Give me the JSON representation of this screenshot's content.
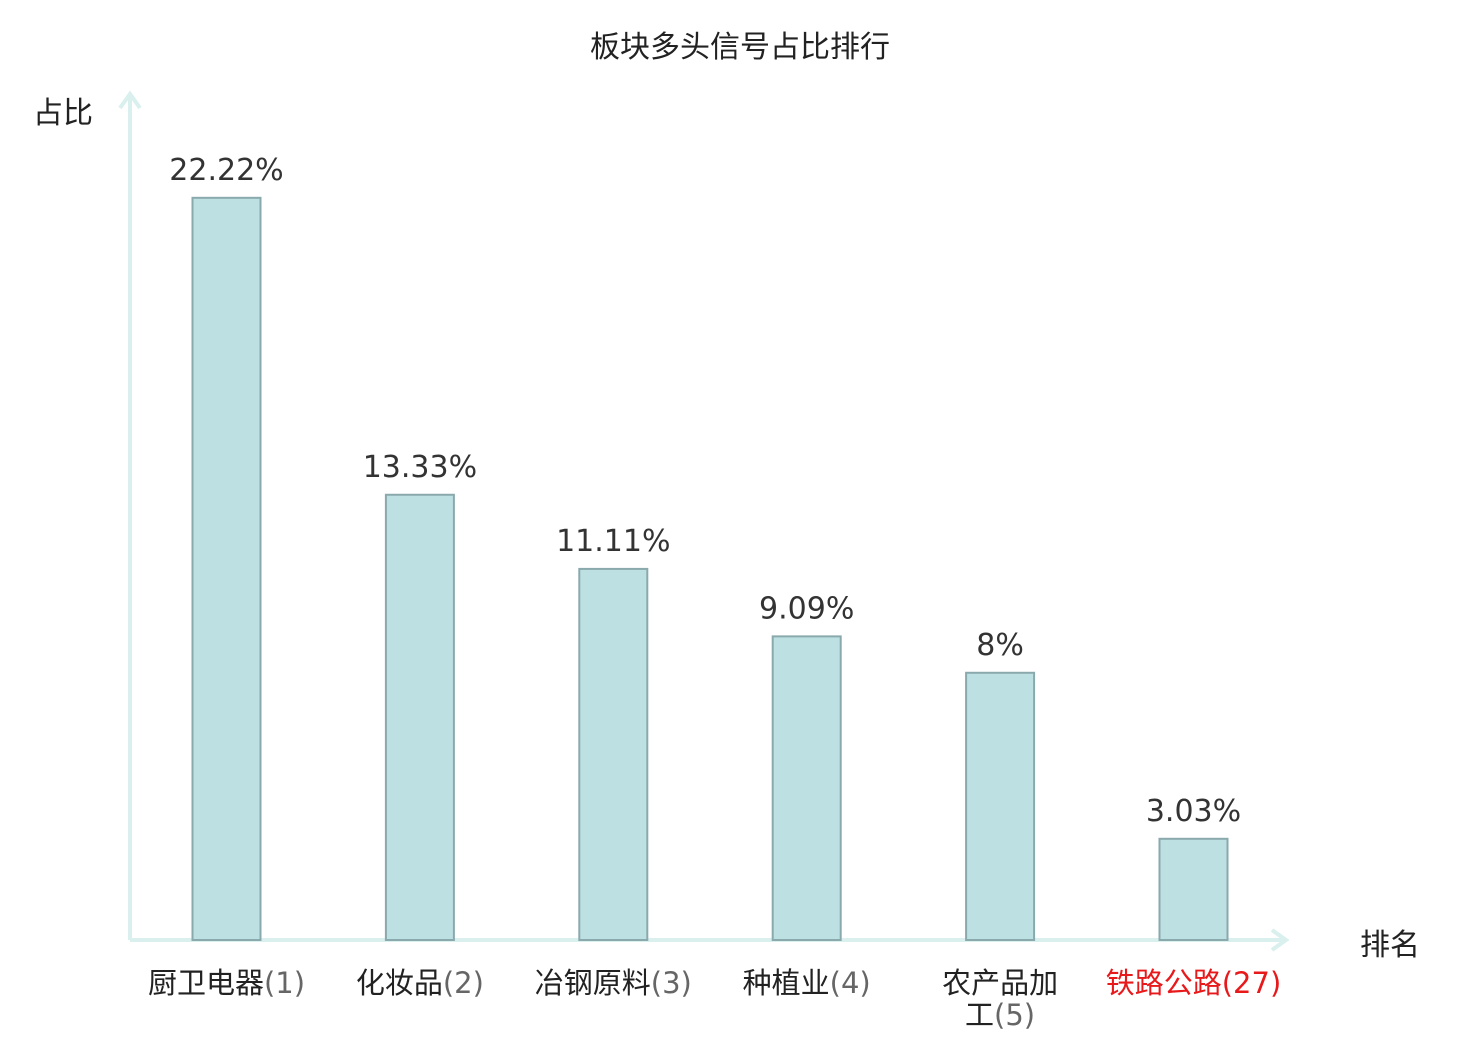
{
  "chart_data": {
    "type": "bar",
    "title": "板块多头信号占比排行",
    "ylabel": "占比",
    "xlabel": "排名",
    "ylim": [
      0,
      24.4
    ],
    "grid": false,
    "categories": [
      {
        "name": "厨卫电器",
        "rank": "(1)"
      },
      {
        "name": "化妆品",
        "rank": "(2)"
      },
      {
        "name": "冶钢原料",
        "rank": "(3)"
      },
      {
        "name": "种植业",
        "rank": "(4)"
      },
      {
        "name": "农产品加工",
        "rank": "(5)"
      },
      {
        "name": "铁路公路",
        "rank": "(27)"
      }
    ],
    "values": [
      22.22,
      13.33,
      11.11,
      9.09,
      8,
      3.03
    ],
    "value_labels": [
      "22.22%",
      "13.33%",
      "11.11%",
      "9.09%",
      "8%",
      "3.03%"
    ],
    "highlight_index": 5,
    "colors": {
      "bar_fill": "#bde0e3",
      "bar_stroke": "#8aa9ad",
      "axis": "#d9f0ee",
      "highlight": "#e8191b"
    }
  }
}
